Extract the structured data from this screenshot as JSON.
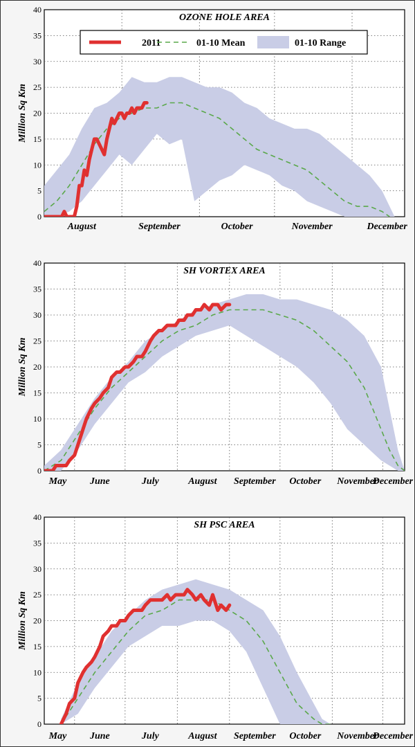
{
  "chart_data": [
    {
      "type": "line",
      "title": "OZONE HOLE AREA",
      "ylabel": "Million Sq Km",
      "ylim": [
        0,
        40
      ],
      "yticks": [
        "0",
        "5",
        "10",
        "15",
        "20",
        "25",
        "30",
        "35",
        "40"
      ],
      "xlim": [
        0,
        144
      ],
      "month_labels": [
        {
          "label": "August",
          "day": 15
        },
        {
          "label": "September",
          "day": 46
        },
        {
          "label": "October",
          "day": 77
        },
        {
          "label": "November",
          "day": 107
        },
        {
          "label": "December",
          "day": 137
        }
      ],
      "month_boundaries": [
        31,
        62,
        92,
        123
      ],
      "legend": {
        "placement": "top",
        "entries": [
          "2011",
          "01-10 Mean",
          "01-10 Range"
        ]
      },
      "series": [
        {
          "name": "2011",
          "color": "#e03030",
          "x": [
            0,
            5,
            7,
            8,
            9,
            10,
            11,
            12,
            13,
            14,
            15,
            16,
            17,
            18,
            19,
            20,
            21,
            22,
            23,
            24,
            25,
            26,
            27,
            28,
            29,
            30,
            31,
            32,
            33,
            34,
            35,
            36,
            37,
            38,
            39,
            40,
            41
          ],
          "values": [
            0,
            0,
            0,
            1,
            0,
            0,
            0,
            0,
            2,
            6,
            6,
            9,
            8,
            11,
            13,
            15,
            15,
            14,
            13,
            12,
            15,
            17,
            19,
            18,
            19,
            20,
            20,
            19,
            20,
            20,
            21,
            20,
            21,
            21,
            21,
            22,
            22
          ]
        },
        {
          "name": "01-10 Mean",
          "color": "#5aa84a",
          "x": [
            0,
            5,
            10,
            15,
            20,
            25,
            30,
            35,
            40,
            45,
            50,
            55,
            60,
            65,
            70,
            75,
            80,
            85,
            90,
            95,
            100,
            105,
            110,
            115,
            120,
            125,
            130,
            135,
            138
          ],
          "values": [
            1,
            3,
            6,
            10,
            14,
            17,
            19,
            20,
            21,
            21,
            22,
            22,
            21,
            20,
            19,
            17,
            15,
            13,
            12,
            11,
            10,
            9,
            7,
            5,
            3,
            2,
            2,
            1,
            0
          ]
        },
        {
          "name": "01-10 Range",
          "color": "#c9cde6",
          "x": [
            0,
            5,
            10,
            15,
            20,
            25,
            30,
            35,
            40,
            45,
            50,
            55,
            60,
            65,
            70,
            75,
            80,
            85,
            90,
            95,
            100,
            105,
            110,
            115,
            120,
            125,
            130,
            135,
            140
          ],
          "upper": [
            6,
            9,
            12,
            17,
            21,
            22,
            24,
            27,
            26,
            26,
            27,
            27,
            26,
            25,
            25,
            24,
            22,
            21,
            19,
            18,
            17,
            17,
            16,
            14,
            12,
            10,
            8,
            5,
            0
          ],
          "lower": [
            0,
            0,
            1,
            3,
            6,
            9,
            12,
            10,
            13,
            16,
            14,
            15,
            3,
            5,
            7,
            8,
            10,
            9,
            8,
            6,
            5,
            3,
            2,
            1,
            0,
            0,
            0,
            0,
            0
          ]
        }
      ]
    },
    {
      "type": "line",
      "title": "SH VORTEX AREA",
      "ylabel": "Million Sq Km",
      "ylim": [
        0,
        40
      ],
      "yticks": [
        "0",
        "5",
        "10",
        "15",
        "20",
        "25",
        "30",
        "35",
        "40"
      ],
      "xlim": [
        0,
        214
      ],
      "month_labels": [
        {
          "label": "May",
          "day": 8
        },
        {
          "label": "June",
          "day": 33
        },
        {
          "label": "July",
          "day": 63
        },
        {
          "label": "August",
          "day": 94
        },
        {
          "label": "September",
          "day": 125
        },
        {
          "label": "October",
          "day": 155
        },
        {
          "label": "November",
          "day": 186
        },
        {
          "label": "December",
          "day": 207
        }
      ],
      "month_boundaries": [
        18,
        48,
        79,
        110,
        140,
        171,
        201
      ],
      "series": [
        {
          "name": "2011",
          "color": "#e03030",
          "x": [
            0,
            5,
            7,
            10,
            13,
            15,
            18,
            20,
            23,
            25,
            28,
            30,
            33,
            35,
            38,
            40,
            43,
            45,
            48,
            50,
            53,
            55,
            58,
            60,
            63,
            65,
            68,
            70,
            73,
            75,
            78,
            80,
            83,
            85,
            88,
            90,
            93,
            95,
            98,
            100,
            103,
            105,
            108,
            110
          ],
          "values": [
            0,
            0,
            1,
            1,
            1,
            2,
            3,
            5,
            8,
            10,
            12,
            13,
            14,
            15,
            16,
            18,
            19,
            19,
            20,
            20,
            21,
            22,
            22,
            23,
            25,
            26,
            27,
            27,
            28,
            28,
            28,
            29,
            29,
            30,
            30,
            31,
            31,
            32,
            31,
            32,
            32,
            31,
            32,
            32
          ]
        },
        {
          "name": "01-10 Mean",
          "color": "#5aa84a",
          "x": [
            0,
            10,
            20,
            30,
            40,
            50,
            60,
            70,
            80,
            90,
            100,
            110,
            120,
            130,
            140,
            150,
            160,
            170,
            180,
            190,
            200,
            205,
            210,
            214
          ],
          "values": [
            0,
            2,
            7,
            12,
            16,
            19,
            22,
            25,
            27,
            28,
            30,
            31,
            31,
            31,
            30,
            29,
            27,
            24,
            21,
            16,
            8,
            4,
            1,
            0
          ]
        },
        {
          "name": "01-10 Range",
          "color": "#c9cde6",
          "x": [
            0,
            10,
            20,
            30,
            40,
            50,
            60,
            70,
            80,
            90,
            100,
            110,
            120,
            130,
            140,
            150,
            160,
            170,
            180,
            190,
            200,
            205,
            210,
            214
          ],
          "upper": [
            1,
            4,
            9,
            14,
            18,
            21,
            25,
            27,
            29,
            31,
            32,
            33,
            34,
            34,
            33,
            33,
            32,
            31,
            29,
            26,
            20,
            12,
            4,
            0
          ],
          "lower": [
            0,
            0,
            4,
            9,
            13,
            17,
            19,
            22,
            24,
            26,
            27,
            28,
            26,
            24,
            22,
            20,
            17,
            13,
            8,
            5,
            2,
            1,
            0,
            0
          ]
        }
      ]
    },
    {
      "type": "line",
      "title": "SH PSC AREA",
      "ylabel": "Million Sq Km",
      "ylim": [
        0,
        40
      ],
      "yticks": [
        "0",
        "5",
        "10",
        "15",
        "20",
        "25",
        "30",
        "35",
        "40"
      ],
      "xlim": [
        0,
        214
      ],
      "month_labels": [
        {
          "label": "May",
          "day": 8
        },
        {
          "label": "June",
          "day": 33
        },
        {
          "label": "July",
          "day": 63
        },
        {
          "label": "August",
          "day": 94
        },
        {
          "label": "September",
          "day": 125
        },
        {
          "label": "October",
          "day": 155
        },
        {
          "label": "November",
          "day": 186
        },
        {
          "label": "December",
          "day": 207
        }
      ],
      "month_boundaries": [
        18,
        48,
        79,
        110,
        140,
        171,
        201
      ],
      "series": [
        {
          "name": "2011",
          "color": "#e03030",
          "x": [
            10,
            13,
            15,
            18,
            20,
            23,
            25,
            28,
            30,
            33,
            35,
            38,
            40,
            43,
            45,
            48,
            50,
            53,
            55,
            58,
            60,
            63,
            65,
            68,
            70,
            73,
            75,
            78,
            80,
            83,
            85,
            88,
            90,
            93,
            95,
            98,
            100,
            103,
            105,
            108,
            110
          ],
          "values": [
            0,
            2,
            4,
            5,
            8,
            10,
            11,
            12,
            13,
            15,
            17,
            18,
            19,
            19,
            20,
            20,
            21,
            22,
            22,
            22,
            23,
            24,
            24,
            24,
            24,
            25,
            24,
            25,
            25,
            25,
            26,
            25,
            24,
            25,
            24,
            23,
            25,
            22,
            23,
            22,
            23
          ]
        },
        {
          "name": "01-10 Mean",
          "color": "#5aa84a",
          "x": [
            10,
            20,
            30,
            40,
            50,
            60,
            70,
            80,
            90,
            100,
            110,
            120,
            130,
            140,
            150,
            160,
            165,
            170
          ],
          "values": [
            0,
            5,
            10,
            14,
            18,
            21,
            22,
            24,
            24,
            24,
            22,
            20,
            16,
            10,
            4,
            1,
            0,
            0
          ]
        },
        {
          "name": "01-10 Range",
          "color": "#c9cde6",
          "x": [
            10,
            20,
            30,
            40,
            50,
            60,
            70,
            80,
            90,
            100,
            110,
            120,
            130,
            140,
            150,
            160,
            165,
            170
          ],
          "upper": [
            1,
            8,
            13,
            18,
            21,
            24,
            26,
            27,
            28,
            27,
            26,
            24,
            22,
            17,
            10,
            4,
            1,
            0
          ],
          "lower": [
            0,
            2,
            7,
            11,
            15,
            17,
            19,
            19,
            20,
            20,
            18,
            14,
            7,
            0,
            0,
            0,
            0,
            0
          ]
        }
      ]
    }
  ]
}
